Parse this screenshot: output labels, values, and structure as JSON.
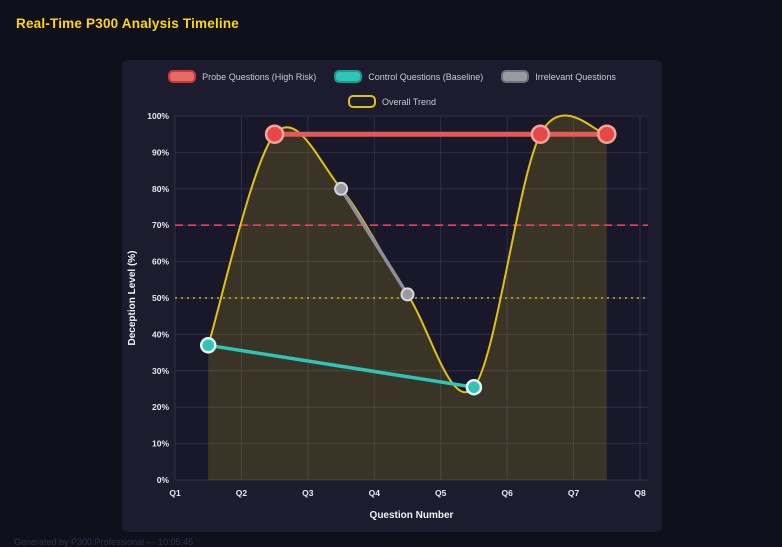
{
  "page": {
    "title": "Real-Time P300 Analysis Timeline",
    "footer": "Generated by P300 Professional — 10:05:45"
  },
  "colors": {
    "background": "#10101c",
    "panel": "#1c1c2e",
    "plot_background": "#18182a",
    "grid": "#2e2e48",
    "title": "#ffd60a",
    "tick_label": "#e8e8f0",
    "axis_title": "#f2f2f7",
    "legend_label": "#c9c9d6",
    "footer": "#31314a"
  },
  "chart_data": {
    "type": "line",
    "title": "Real-Time P300 Analysis Timeline",
    "xlabel": "Question Number",
    "ylabel": "Deception Level (%)",
    "x_tick_labels": [
      "Q1",
      "Q2",
      "Q3",
      "Q4",
      "Q5",
      "Q6",
      "Q7",
      "Q8"
    ],
    "x_tick_values": [
      1,
      2,
      3,
      4,
      5,
      6,
      7,
      8
    ],
    "xlim": [
      1,
      8
    ],
    "ylim": [
      0,
      100
    ],
    "y_tick_labels": [
      "0%",
      "10%",
      "20%",
      "30%",
      "40%",
      "50%",
      "60%",
      "70%",
      "80%",
      "90%",
      "100%"
    ],
    "y_tick_values": [
      0,
      10,
      20,
      30,
      40,
      50,
      60,
      70,
      80,
      90,
      100
    ],
    "grid": true,
    "legend_position": "top-center",
    "series": [
      {
        "name": "Probe Questions (High Risk)",
        "id": "probe-questions",
        "color": "#e35a5a",
        "line_width": 5,
        "smooth": false,
        "marker": {
          "radius": 8.5,
          "fill": "#e84747",
          "ring": "#f2a39c",
          "ring_width": 2.5
        },
        "legend": {
          "fill": "#e66a66",
          "border": "#cf3535"
        },
        "points": [
          [
            2.5,
            95
          ],
          [
            6.5,
            95
          ],
          [
            7.5,
            95
          ]
        ]
      },
      {
        "name": "Control Questions (Baseline)",
        "id": "control-questions",
        "color": "#2ec4b6",
        "line_width": 3.5,
        "smooth": false,
        "marker": {
          "radius": 7,
          "fill": "#2ec4b6",
          "ring": "#e0f7f4",
          "ring_width": 2.5
        },
        "legend": {
          "fill": "#2ec4b6",
          "border": "#189a8e"
        },
        "points": [
          [
            1.5,
            37
          ],
          [
            5.5,
            25.5
          ]
        ]
      },
      {
        "name": "Irrelevant Questions",
        "id": "irrelevant-questions",
        "color": "#8e8e98",
        "line_width": 3.5,
        "smooth": false,
        "marker": {
          "radius": 6,
          "fill": "#9a9aa2",
          "ring": "#d6d6dc",
          "ring_width": 2
        },
        "legend": {
          "fill": "#9a9aa2",
          "border": "#6f6f78"
        },
        "points": [
          [
            3.5,
            80
          ],
          [
            4.5,
            51
          ]
        ]
      },
      {
        "name": "Overall Trend",
        "id": "overall-trend",
        "color": "#e3c114",
        "line_width": 2,
        "smooth": true,
        "area_fill": "rgba(227,193,20,0.17)",
        "marker": null,
        "legend": {
          "fill": "#1c1c2e",
          "border": "#e3c114"
        },
        "points": [
          [
            1.5,
            37
          ],
          [
            2.5,
            95
          ],
          [
            3.5,
            80
          ],
          [
            4.5,
            51
          ],
          [
            5.5,
            25.5
          ],
          [
            6.5,
            95
          ],
          [
            7.5,
            95
          ]
        ]
      }
    ],
    "thresholds": [
      {
        "id": "probe-threshold",
        "value": 70,
        "color": "#e8435a",
        "dash": "8 5",
        "width": 1.6
      },
      {
        "id": "baseline-threshold",
        "value": 50,
        "color": "#cdb60b",
        "dash": "2 4",
        "width": 1.6
      }
    ]
  }
}
